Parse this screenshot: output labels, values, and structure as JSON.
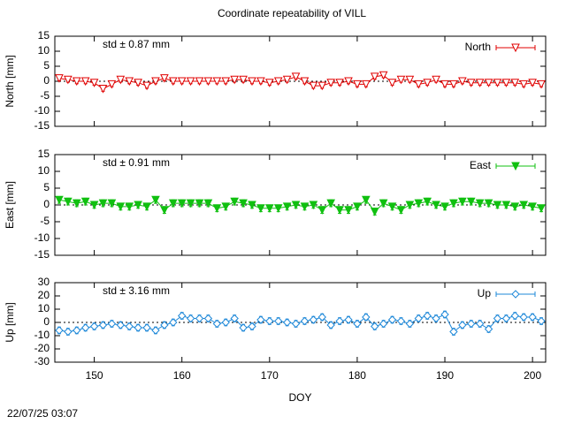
{
  "chart_data": [
    {
      "type": "line",
      "title": "Coordinate repeatability of VILL",
      "ylabel": "North [mm]",
      "annotation": "std ± 0.87 mm",
      "annotation_color": "#e00000",
      "ylim": [
        -15,
        15
      ],
      "yticks": [
        15,
        10,
        5,
        0,
        -5,
        -10,
        -15
      ],
      "legend": "upper right",
      "x": [
        146,
        147,
        148,
        149,
        150,
        151,
        152,
        153,
        154,
        155,
        156,
        157,
        158,
        159,
        160,
        161,
        162,
        163,
        164,
        165,
        166,
        167,
        168,
        169,
        170,
        171,
        172,
        173,
        174,
        175,
        176,
        177,
        178,
        179,
        180,
        181,
        182,
        183,
        184,
        185,
        186,
        187,
        188,
        189,
        190,
        191,
        192,
        193,
        194,
        195,
        196,
        197,
        198,
        199,
        200,
        201
      ],
      "series": [
        {
          "name": "North",
          "color": "#e00000",
          "marker": "triangle-down-open",
          "values": [
            1,
            0.5,
            0,
            0,
            -0.5,
            -2.5,
            -1,
            0.5,
            0,
            -0.5,
            -1.5,
            0,
            1,
            0,
            0,
            0,
            0,
            0,
            0,
            0,
            0.5,
            0.5,
            0,
            0,
            -0.5,
            0,
            0.5,
            1.5,
            0,
            -1.5,
            -1.5,
            -0.5,
            -0.5,
            0,
            -1,
            -1,
            1.5,
            2,
            -0.5,
            0.5,
            0.5,
            -1,
            -0.5,
            0.5,
            -1,
            -1,
            0,
            -0.5,
            -0.5,
            -0.5,
            -0.5,
            -0.5,
            -0.5,
            -1,
            -0.5,
            -1
          ],
          "errors": [
            0.8,
            0.8,
            0.8,
            0.8,
            0.8,
            0.8,
            0.8,
            0.8,
            0.8,
            0.8,
            0.8,
            0.8,
            0.8,
            0.8,
            0.8,
            0.8,
            0.8,
            0.8,
            0.8,
            0.8,
            0.8,
            0.8,
            0.8,
            0.8,
            0.8,
            0.8,
            0.8,
            0.8,
            0.8,
            0.8,
            0.8,
            0.8,
            0.8,
            0.8,
            0.8,
            0.8,
            0.8,
            0.8,
            0.8,
            0.8,
            0.8,
            0.8,
            0.8,
            0.8,
            0.8,
            0.8,
            0.8,
            0.8,
            0.8,
            0.8,
            0.8,
            0.8,
            0.8,
            0.8,
            0.8,
            0.8
          ]
        }
      ]
    },
    {
      "type": "line",
      "ylabel": "East [mm]",
      "annotation": "std ± 0.91 mm",
      "annotation_color": "#10c010",
      "ylim": [
        -15,
        15
      ],
      "yticks": [
        15,
        10,
        5,
        0,
        -5,
        -10,
        -15
      ],
      "legend": "upper right",
      "x": [
        146,
        147,
        148,
        149,
        150,
        151,
        152,
        153,
        154,
        155,
        156,
        157,
        158,
        159,
        160,
        161,
        162,
        163,
        164,
        165,
        166,
        167,
        168,
        169,
        170,
        171,
        172,
        173,
        174,
        175,
        176,
        177,
        178,
        179,
        180,
        181,
        182,
        183,
        184,
        185,
        186,
        187,
        188,
        189,
        190,
        191,
        192,
        193,
        194,
        195,
        196,
        197,
        198,
        199,
        200,
        201
      ],
      "series": [
        {
          "name": "East",
          "color": "#10c010",
          "marker": "triangle-down-filled",
          "values": [
            1.5,
            1,
            0.5,
            1,
            0,
            0.5,
            0.5,
            -0.5,
            -0.5,
            0,
            -0.5,
            1.5,
            -1.5,
            0.5,
            0.5,
            0.5,
            0.5,
            0.5,
            -1,
            -0.5,
            1,
            0.5,
            0,
            -1,
            -1,
            -1,
            -0.5,
            0,
            -0.5,
            0,
            -1.5,
            0.5,
            -1.5,
            -1.5,
            -0.5,
            1.5,
            -2,
            0.5,
            -0.5,
            -1.5,
            0,
            0.5,
            1,
            0,
            -0.5,
            0.5,
            1,
            1,
            0.5,
            0.5,
            0,
            0,
            -0.5,
            0,
            -0.5,
            -1
          ],
          "errors": [
            1,
            1,
            1,
            1,
            1,
            1,
            1,
            1,
            1,
            1,
            1,
            1,
            1,
            1,
            1,
            1,
            1,
            1,
            1,
            1,
            1,
            1,
            1,
            1,
            1,
            1,
            1,
            1,
            1,
            1,
            1,
            1,
            1,
            1,
            1,
            1,
            1,
            1,
            1,
            1,
            1,
            1,
            1,
            1,
            1,
            1,
            1,
            1,
            1,
            1,
            1,
            1,
            1,
            1,
            1,
            1
          ]
        }
      ]
    },
    {
      "type": "line",
      "ylabel": "Up [mm]",
      "xlabel": "DOY",
      "annotation": "std ± 3.16 mm",
      "annotation_color": "#1e88d8",
      "ylim": [
        -30,
        30
      ],
      "yticks": [
        30,
        20,
        10,
        0,
        -10,
        -20,
        -30
      ],
      "legend": "upper right",
      "xlim": [
        145.5,
        201.5
      ],
      "xticks": [
        150,
        160,
        170,
        180,
        190,
        200
      ],
      "x": [
        146,
        147,
        148,
        149,
        150,
        151,
        152,
        153,
        154,
        155,
        156,
        157,
        158,
        159,
        160,
        161,
        162,
        163,
        164,
        165,
        166,
        167,
        168,
        169,
        170,
        171,
        172,
        173,
        174,
        175,
        176,
        177,
        178,
        179,
        180,
        181,
        182,
        183,
        184,
        185,
        186,
        187,
        188,
        189,
        190,
        191,
        192,
        193,
        194,
        195,
        196,
        197,
        198,
        199,
        200,
        201
      ],
      "series": [
        {
          "name": "Up",
          "color": "#1e88d8",
          "marker": "diamond-open",
          "values": [
            -6,
            -7,
            -6,
            -4,
            -3,
            -2,
            -1,
            -2,
            -3,
            -4,
            -4,
            -6,
            -2,
            0,
            5,
            3,
            3,
            3,
            -1,
            0,
            3,
            -4,
            -3,
            2,
            1,
            1,
            0,
            -1,
            1,
            2,
            4,
            -2,
            1,
            2,
            -1,
            4,
            -3,
            -1,
            2,
            1,
            -1,
            3,
            5,
            3,
            6,
            -7,
            -2,
            -1,
            -1,
            -5,
            3,
            3,
            5,
            4,
            4,
            1
          ],
          "errors": [
            2.5,
            2.5,
            2.5,
            2.5,
            2.5,
            2.5,
            2.5,
            2.5,
            2.5,
            2.5,
            2.5,
            2.5,
            2.5,
            2.5,
            2.5,
            2.5,
            2.5,
            2.5,
            2.5,
            2.5,
            2.5,
            2.5,
            2.5,
            2.5,
            2.5,
            2.5,
            2.5,
            2.5,
            2.5,
            2.5,
            2.5,
            2.5,
            2.5,
            2.5,
            2.5,
            2.5,
            2.5,
            2.5,
            2.5,
            2.5,
            2.5,
            2.5,
            2.5,
            2.5,
            2.5,
            2.5,
            2.5,
            2.5,
            2.5,
            2.5,
            2.5,
            2.5,
            2.5,
            2.5,
            2.5,
            2.5
          ]
        }
      ]
    }
  ],
  "timestamp": "22/07/25 03:07"
}
